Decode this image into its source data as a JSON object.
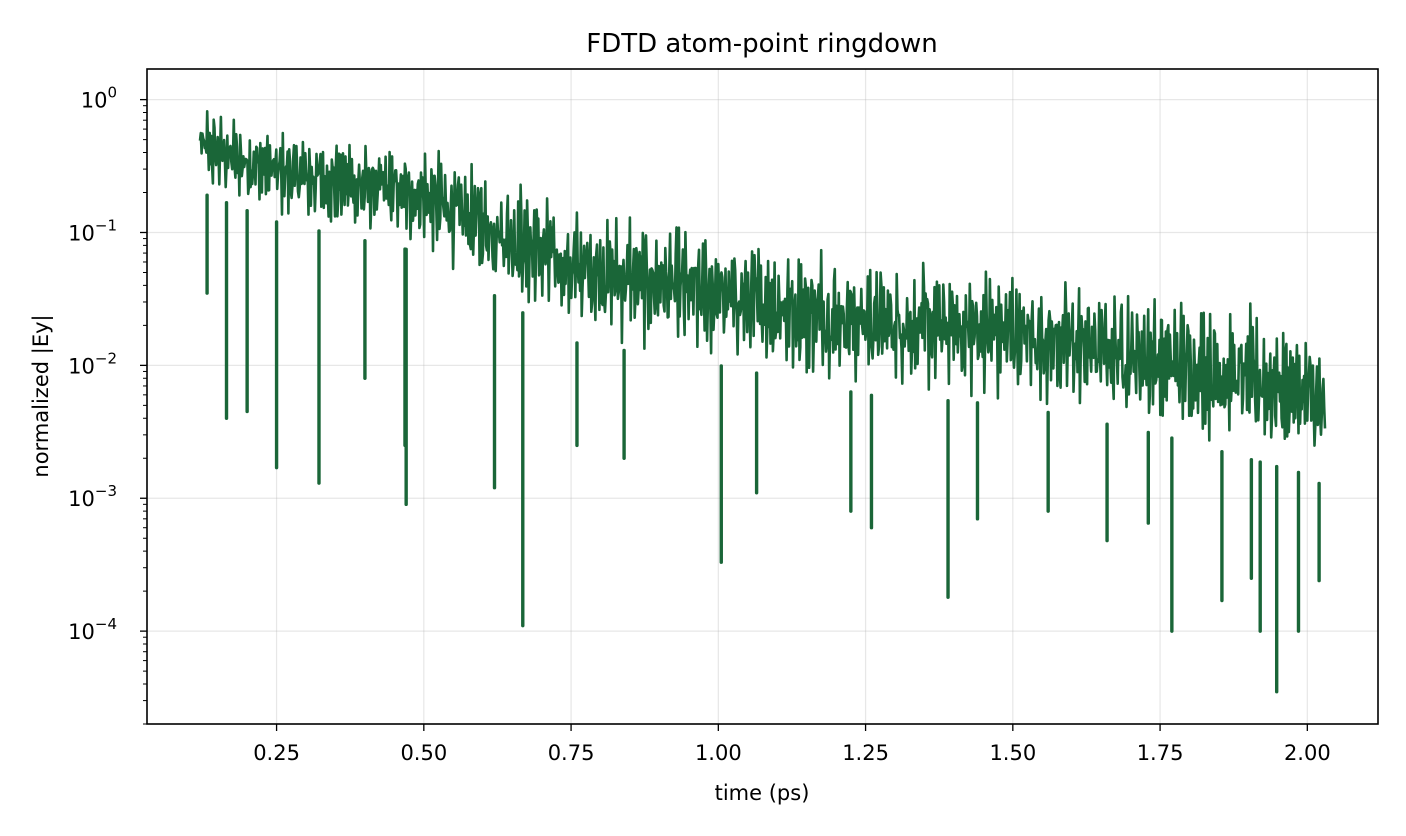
{
  "chart_data": {
    "type": "line",
    "title": "FDTD atom-point ringdown",
    "xlabel": "time (ps)",
    "ylabel": "normalized |Ey|",
    "xlim": [
      0.03,
      2.12
    ],
    "ylim": [
      2e-05,
      1.7
    ],
    "yscale": "log",
    "grid": true,
    "x_ticks": [
      0.25,
      0.5,
      0.75,
      1.0,
      1.25,
      1.5,
      1.75,
      2.0
    ],
    "x_tick_labels": [
      "0.25",
      "0.50",
      "0.75",
      "1.00",
      "1.25",
      "1.50",
      "1.75",
      "2.00"
    ],
    "y_ticks": [
      {
        "value": 1,
        "base": "10",
        "exp": "0"
      },
      {
        "value": 0.1,
        "base": "10",
        "exp": "−1"
      },
      {
        "value": 0.01,
        "base": "10",
        "exp": "−2"
      },
      {
        "value": 0.001,
        "base": "10",
        "exp": "−3"
      },
      {
        "value": 0.0001,
        "base": "10",
        "exp": "−4"
      }
    ],
    "series": [
      {
        "color": "#1a6638",
        "envelope": {
          "x": [
            0.12,
            0.25,
            0.5,
            0.75,
            1.0,
            1.25,
            1.5,
            1.75,
            2.0,
            2.03
          ],
          "upper": [
            0.97,
            0.68,
            0.5,
            0.2,
            0.11,
            0.075,
            0.06,
            0.04,
            0.025,
            0.014
          ],
          "lower": [
            0.2,
            0.12,
            0.07,
            0.015,
            0.01,
            0.006,
            0.005,
            0.003,
            0.0015,
            0.0012
          ]
        },
        "dips": [
          {
            "x": 0.132,
            "y": 0.035
          },
          {
            "x": 0.165,
            "y": 0.004
          },
          {
            "x": 0.2,
            "y": 0.0045
          },
          {
            "x": 0.25,
            "y": 0.0017
          },
          {
            "x": 0.322,
            "y": 0.0013
          },
          {
            "x": 0.4,
            "y": 0.008
          },
          {
            "x": 0.468,
            "y": 0.0025
          },
          {
            "x": 0.47,
            "y": 0.0009
          },
          {
            "x": 0.62,
            "y": 0.0012
          },
          {
            "x": 0.668,
            "y": 0.00011
          },
          {
            "x": 0.76,
            "y": 0.0025
          },
          {
            "x": 0.84,
            "y": 0.002
          },
          {
            "x": 1.005,
            "y": 0.00033
          },
          {
            "x": 1.065,
            "y": 0.0011
          },
          {
            "x": 1.225,
            "y": 0.0008
          },
          {
            "x": 1.26,
            "y": 0.0006
          },
          {
            "x": 1.39,
            "y": 0.00018
          },
          {
            "x": 1.44,
            "y": 0.0007
          },
          {
            "x": 1.56,
            "y": 0.0008
          },
          {
            "x": 1.66,
            "y": 0.00048
          },
          {
            "x": 1.73,
            "y": 0.00065
          },
          {
            "x": 1.77,
            "y": 0.0001
          },
          {
            "x": 1.855,
            "y": 0.00017
          },
          {
            "x": 1.905,
            "y": 0.00025
          },
          {
            "x": 1.92,
            "y": 0.0001
          },
          {
            "x": 1.948,
            "y": 3.5e-05
          },
          {
            "x": 1.985,
            "y": 0.0001
          },
          {
            "x": 2.02,
            "y": 0.00024
          }
        ]
      }
    ]
  }
}
